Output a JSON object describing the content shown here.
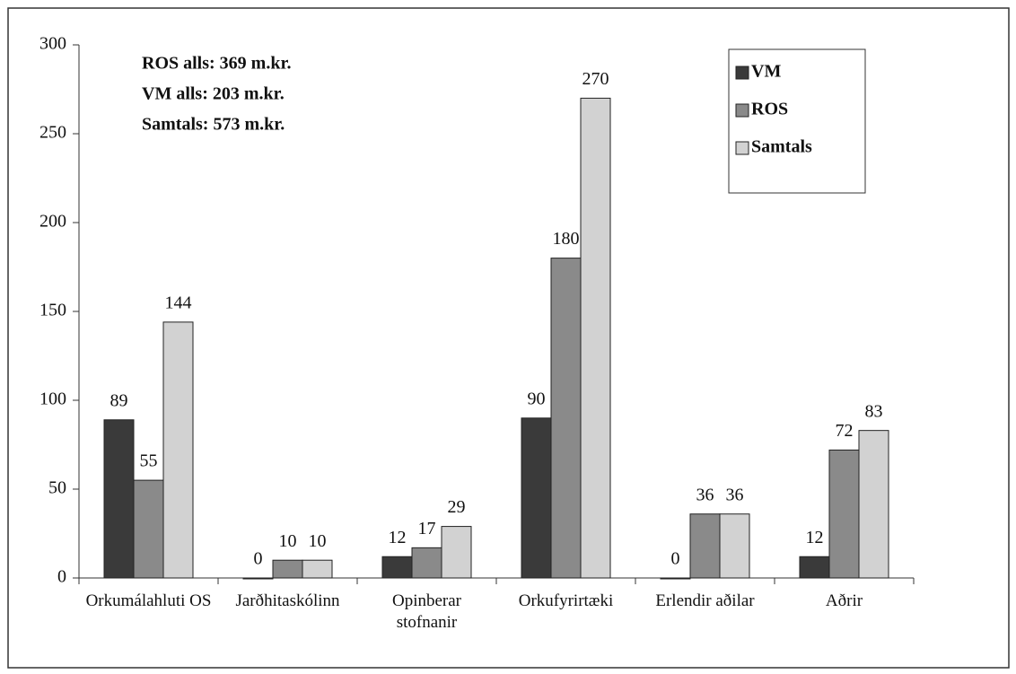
{
  "chart_data": {
    "type": "bar",
    "annotations": [
      "ROS alls: 369 m.kr.",
      "VM alls: 203 m.kr.",
      "Samtals: 573 m.kr."
    ],
    "categories": [
      "Orkumálahluti OS",
      "Jarðhitaskólinn",
      "Opinberar stofnanir",
      "Orkufyrirtæki",
      "Erlendir aðilar",
      "Aðrir"
    ],
    "series": [
      {
        "name": "VM",
        "color": "#3a3a3a",
        "values": [
          89,
          0,
          12,
          90,
          0,
          12
        ]
      },
      {
        "name": "ROS",
        "color": "#8a8a8a",
        "values": [
          55,
          10,
          17,
          180,
          36,
          72
        ]
      },
      {
        "name": "Samtals",
        "color": "#d2d2d2",
        "values": [
          144,
          10,
          29,
          270,
          36,
          83
        ]
      }
    ],
    "ylim": [
      0,
      300
    ],
    "yticks": [
      0,
      50,
      100,
      150,
      200,
      250,
      300
    ],
    "grid": false,
    "legend": "upper right"
  }
}
